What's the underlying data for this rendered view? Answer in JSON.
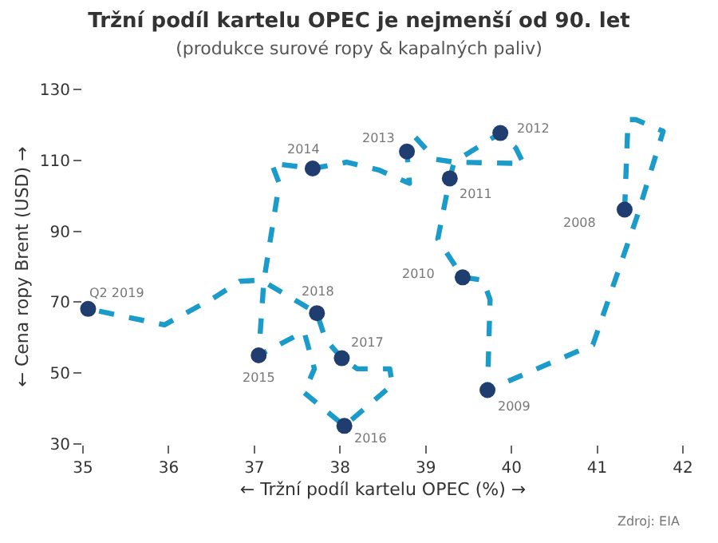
{
  "chart_data": {
    "type": "line",
    "title": "Tržní podíl kartelu OPEC je nejmenší od 90. let",
    "subtitle": "(produkce surové ropy & kapalných paliv)",
    "xlabel": "← Tržní podíl kartelu OPEC (%) →",
    "ylabel": "← Cena ropy Brent (USD) →",
    "xlim": [
      35,
      42
    ],
    "xticks": [
      35,
      36,
      37,
      38,
      39,
      40,
      41,
      42
    ],
    "ylim": [
      30,
      130
    ],
    "yticks": [
      30,
      50,
      70,
      90,
      110,
      130
    ],
    "grid": false,
    "series": [
      {
        "color": "#1a9bc9",
        "line_style": "dashed",
        "marker": "none",
        "x": [
          41.32,
          41.36,
          41.45,
          41.77,
          41.46,
          40.95,
          39.72,
          39.75,
          39.67,
          39.43,
          39.14,
          39.28,
          39.33,
          40.14,
          40.05,
          39.87,
          39.33,
          39.11,
          38.86,
          38.78,
          38.81,
          38.45,
          38.08,
          37.68,
          37.2,
          37.29,
          37.11,
          37.05,
          37.58,
          37.7,
          37.58,
          38.05,
          38.61,
          38.58,
          38.2,
          38.02,
          37.83,
          37.73,
          37.08,
          36.83,
          36.54,
          35.95,
          35.06
        ],
        "values": [
          96.1,
          121.5,
          121.5,
          118.2,
          93.8,
          58,
          45.2,
          70.7,
          76.2,
          77,
          87.8,
          104.9,
          109.5,
          109.1,
          113.5,
          117.7,
          109.5,
          110.3,
          117,
          112.5,
          103.5,
          107.3,
          109.5,
          107.7,
          109.2,
          103.5,
          75.9,
          55,
          61.7,
          51.2,
          44.5,
          35.1,
          46.7,
          51.2,
          51.2,
          54.2,
          59.5,
          66.9,
          76.2,
          75.9,
          71.4,
          63.6,
          68.1
        ]
      },
      {
        "type": "scatter",
        "color": "#1f3d6e",
        "marker": "circle",
        "x": [
          41.32,
          39.72,
          39.43,
          39.28,
          39.87,
          38.78,
          37.68,
          37.05,
          38.05,
          38.02,
          37.73,
          35.06
        ],
        "values": [
          96.1,
          45.2,
          77,
          104.9,
          117.7,
          112.5,
          107.7,
          55,
          35.1,
          54.2,
          66.9,
          68.1
        ]
      }
    ],
    "annotations": [
      {
        "text": "2008",
        "x": 41.32,
        "y": 96.1
      },
      {
        "text": "2009",
        "x": 39.72,
        "y": 45.2
      },
      {
        "text": "2010",
        "x": 39.43,
        "y": 77
      },
      {
        "text": "2011",
        "x": 39.28,
        "y": 104.9
      },
      {
        "text": "2012",
        "x": 39.87,
        "y": 117.7
      },
      {
        "text": "2013",
        "x": 38.78,
        "y": 112.5
      },
      {
        "text": "2014",
        "x": 37.68,
        "y": 107.7
      },
      {
        "text": "2015",
        "x": 37.05,
        "y": 55
      },
      {
        "text": "2016",
        "x": 38.05,
        "y": 35.1
      },
      {
        "text": "2017",
        "x": 38.02,
        "y": 54.2
      },
      {
        "text": "2018",
        "x": 37.73,
        "y": 66.9
      },
      {
        "text": "Q2 2019",
        "x": 35.06,
        "y": 68.1
      },
      "Zdroj: EIA"
    ]
  }
}
